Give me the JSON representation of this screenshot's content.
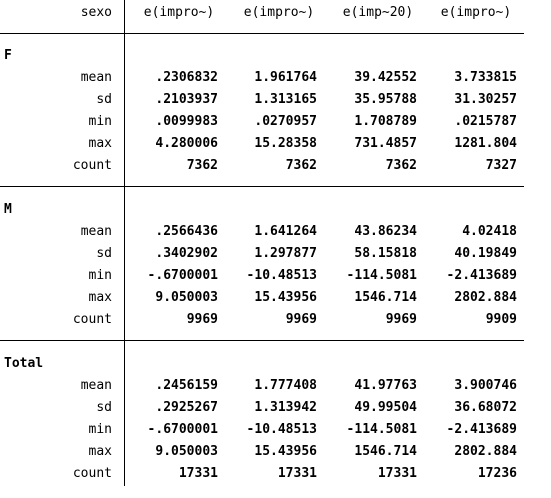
{
  "header": {
    "stub": "sexo",
    "columns": [
      "e(impro~)",
      "e(impro~)",
      "e(imp~20)",
      "e(impro~)"
    ]
  },
  "groups": [
    {
      "name": "F",
      "rows": [
        {
          "stat": "mean",
          "values": [
            ".2306832",
            "1.961764",
            "39.42552",
            "3.733815"
          ]
        },
        {
          "stat": "sd",
          "values": [
            ".2103937",
            "1.313165",
            "35.95788",
            "31.30257"
          ]
        },
        {
          "stat": "min",
          "values": [
            ".0099983",
            ".0270957",
            "1.708789",
            ".0215787"
          ]
        },
        {
          "stat": "max",
          "values": [
            "4.280006",
            "15.28358",
            "731.4857",
            "1281.804"
          ]
        },
        {
          "stat": "count",
          "values": [
            "7362",
            "7362",
            "7362",
            "7327"
          ]
        }
      ]
    },
    {
      "name": "M",
      "rows": [
        {
          "stat": "mean",
          "values": [
            ".2566436",
            "1.641264",
            "43.86234",
            "4.02418"
          ]
        },
        {
          "stat": "sd",
          "values": [
            ".3402902",
            "1.297877",
            "58.15818",
            "40.19849"
          ]
        },
        {
          "stat": "min",
          "values": [
            "-.6700001",
            "-10.48513",
            "-114.5081",
            "-2.413689"
          ]
        },
        {
          "stat": "max",
          "values": [
            "9.050003",
            "15.43956",
            "1546.714",
            "2802.884"
          ]
        },
        {
          "stat": "count",
          "values": [
            "9969",
            "9969",
            "9969",
            "9909"
          ]
        }
      ]
    },
    {
      "name": "Total",
      "rows": [
        {
          "stat": "mean",
          "values": [
            ".2456159",
            "1.777408",
            "41.97763",
            "3.900746"
          ]
        },
        {
          "stat": "sd",
          "values": [
            ".2925267",
            "1.313942",
            "49.99504",
            "36.68072"
          ]
        },
        {
          "stat": "min",
          "values": [
            "-.6700001",
            "-10.48513",
            "-114.5081",
            "-2.413689"
          ]
        },
        {
          "stat": "max",
          "values": [
            "9.050003",
            "15.43956",
            "1546.714",
            "2802.884"
          ]
        },
        {
          "stat": "count",
          "values": [
            "17331",
            "17331",
            "17331",
            "17236"
          ]
        }
      ]
    }
  ]
}
